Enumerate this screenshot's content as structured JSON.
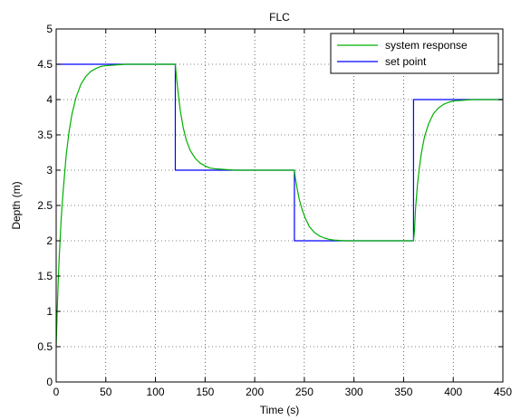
{
  "chart_data": {
    "type": "line",
    "title": "FLC",
    "xlabel": "Time (s)",
    "ylabel": "Depth (m)",
    "xlim": [
      0,
      450
    ],
    "ylim": [
      0,
      5
    ],
    "xticks": [
      0,
      50,
      100,
      150,
      200,
      250,
      300,
      350,
      400,
      450
    ],
    "yticks": [
      0,
      0.5,
      1,
      1.5,
      2,
      2.5,
      3,
      3.5,
      4,
      4.5,
      5
    ],
    "xtick_labels": [
      "0",
      "50",
      "100",
      "150",
      "200",
      "250",
      "300",
      "350",
      "400",
      "450"
    ],
    "ytick_labels": [
      "0",
      "0.5",
      "1",
      "1.5",
      "2",
      "2.5",
      "3",
      "3.5",
      "4",
      "4.5",
      "5"
    ],
    "grid": true,
    "grid_style": "dotted",
    "legend_position": "top-right",
    "series": [
      {
        "name": "system response",
        "color": "#00b000",
        "x": [
          0,
          1,
          2,
          3,
          5,
          7,
          10,
          13,
          16,
          20,
          25,
          30,
          35,
          40,
          45,
          50,
          60,
          70,
          80,
          90,
          100,
          110,
          120,
          121,
          123,
          125,
          128,
          131,
          135,
          140,
          145,
          150,
          155,
          160,
          170,
          180,
          190,
          200,
          210,
          220,
          230,
          240,
          241,
          243,
          245,
          248,
          251,
          255,
          260,
          265,
          270,
          275,
          280,
          290,
          300,
          320,
          340,
          360,
          361,
          362,
          364,
          366,
          368,
          371,
          375,
          380,
          385,
          390,
          395,
          400,
          410,
          420,
          430,
          440,
          450
        ],
        "y": [
          0.5,
          1.0,
          1.4,
          1.75,
          2.3,
          2.7,
          3.2,
          3.55,
          3.8,
          4.03,
          4.22,
          4.33,
          4.4,
          4.44,
          4.47,
          4.48,
          4.49,
          4.5,
          4.5,
          4.5,
          4.5,
          4.5,
          4.5,
          4.35,
          4.08,
          3.85,
          3.6,
          3.43,
          3.28,
          3.17,
          3.1,
          3.06,
          3.03,
          3.02,
          3.01,
          3.0,
          3.0,
          3.0,
          3.0,
          3.0,
          3.0,
          3.0,
          2.88,
          2.72,
          2.58,
          2.43,
          2.32,
          2.2,
          2.12,
          2.07,
          2.04,
          2.02,
          2.01,
          2.0,
          2.0,
          2.0,
          2.0,
          2.0,
          2.15,
          2.45,
          2.8,
          3.05,
          3.25,
          3.47,
          3.65,
          3.8,
          3.88,
          3.93,
          3.96,
          3.98,
          3.99,
          4.0,
          4.0,
          4.0,
          4.0
        ]
      },
      {
        "name": "set point",
        "color": "#0000ff",
        "x": [
          0,
          120,
          120,
          240,
          240,
          360,
          360,
          450
        ],
        "y": [
          4.5,
          4.5,
          3,
          3,
          2,
          2,
          4,
          4
        ]
      }
    ]
  }
}
